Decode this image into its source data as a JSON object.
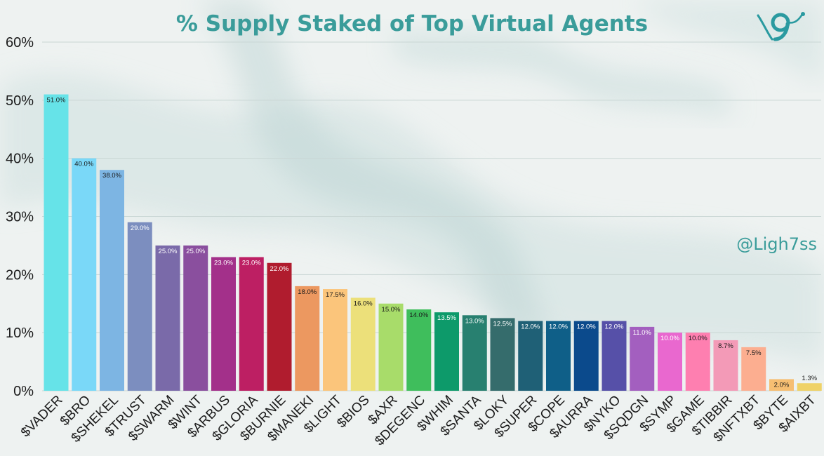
{
  "page": {
    "title": "% Supply Staked of Top Virtual Agents",
    "handle": "@Ligh7ss"
  },
  "colors": {
    "title": "#3a9c9a",
    "grid": "#c9d6d4"
  },
  "chart_data": {
    "type": "bar",
    "title": "% Supply Staked of Top Virtual Agents",
    "xlabel": "",
    "ylabel": "",
    "ylim": [
      0,
      60
    ],
    "yticks": [
      "0%",
      "10%",
      "20%",
      "30%",
      "40%",
      "50%",
      "60%"
    ],
    "grid": true,
    "categories": [
      "$VADER",
      "$BRO",
      "$SHEKEL",
      "$TRUST",
      "$SWARM",
      "$WINT",
      "$ARBUS",
      "$GLORIA",
      "$BURNIE",
      "$MANEKI",
      "$LIGHT",
      "$BIOS",
      "$AXR",
      "$DEGENC",
      "$WHIM",
      "$SANTA",
      "$LOKY",
      "$SUPER",
      "$COPE",
      "$AURRA",
      "$NYKO",
      "$SQDGN",
      "$SYMP",
      "$GAME",
      "$TIBBIR",
      "$NFTXBT",
      "$BYTE",
      "$AIXBT"
    ],
    "values": [
      51.0,
      40.0,
      38.0,
      29.0,
      25.0,
      25.0,
      23.0,
      23.0,
      22.0,
      18.0,
      17.5,
      16.0,
      15.0,
      14.0,
      13.5,
      13.0,
      12.5,
      12.0,
      12.0,
      12.0,
      12.0,
      11.0,
      10.0,
      10.0,
      8.7,
      7.5,
      2.0,
      1.3
    ],
    "data_labels": [
      "51.0%",
      "40.0%",
      "38.0%",
      "29.0%",
      "25.0%",
      "25.0%",
      "23.0%",
      "23.0%",
      "22.0%",
      "18.0%",
      "17.5%",
      "16.0%",
      "15.0%",
      "14.0%",
      "13.5%",
      "13.0%",
      "12.5%",
      "12.0%",
      "12.0%",
      "12.0%",
      "12.0%",
      "11.0%",
      "10.0%",
      "10.0%",
      "8.7%",
      "7.5%",
      "2.0%",
      "1.3%"
    ],
    "bar_colors": [
      "#66e3e8",
      "#7ad8f8",
      "#7db5e3",
      "#7c8ebf",
      "#7a6aa9",
      "#8a4f9e",
      "#a3308a",
      "#bd1f63",
      "#b01c2e",
      "#ec9860",
      "#fbc57b",
      "#ece07a",
      "#a8dc6a",
      "#3fbe5c",
      "#0d9a6a",
      "#288070",
      "#356c6c",
      "#1f6076",
      "#0f5f88",
      "#0b4a8c",
      "#5650a8",
      "#a35fbf",
      "#e968cf",
      "#fe7fb0",
      "#f39ab7",
      "#fcae90",
      "#f6be72",
      "#efd267"
    ],
    "label_colors": [
      "#1a1a1a",
      "#1a1a1a",
      "#1a1a1a",
      "#ffffff",
      "#ffffff",
      "#ffffff",
      "#ffffff",
      "#ffffff",
      "#ffffff",
      "#1a1a1a",
      "#1a1a1a",
      "#1a1a1a",
      "#1a1a1a",
      "#1a1a1a",
      "#ffffff",
      "#ffffff",
      "#ffffff",
      "#ffffff",
      "#ffffff",
      "#ffffff",
      "#ffffff",
      "#ffffff",
      "#ffffff",
      "#1a1a1a",
      "#1a1a1a",
      "#1a1a1a",
      "#1a1a1a",
      "#1a1a1a"
    ]
  }
}
